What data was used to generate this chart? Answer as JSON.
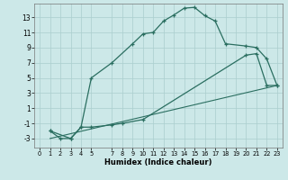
{
  "xlabel": "Humidex (Indice chaleur)",
  "bg_color": "#cce8e8",
  "line_color": "#2a6e60",
  "grid_color": "#aacece",
  "xlim": [
    -0.5,
    23.5
  ],
  "ylim": [
    -4.2,
    14.8
  ],
  "xticks": [
    0,
    1,
    2,
    3,
    4,
    5,
    7,
    8,
    9,
    10,
    11,
    12,
    13,
    14,
    15,
    16,
    17,
    18,
    19,
    20,
    21,
    22,
    23
  ],
  "yticks": [
    -3,
    -1,
    1,
    3,
    5,
    7,
    9,
    11,
    13
  ],
  "curve1_x": [
    1,
    2,
    3,
    4,
    5,
    7,
    9,
    10,
    11,
    12,
    13,
    14,
    15,
    16,
    17,
    18,
    20,
    21,
    22,
    23
  ],
  "curve1_y": [
    -2,
    -3,
    -3,
    -1.5,
    5.0,
    7.0,
    9.5,
    10.8,
    11.0,
    12.5,
    13.3,
    14.2,
    14.3,
    13.2,
    12.5,
    9.5,
    9.2,
    9.0,
    7.5,
    4.0
  ],
  "curve2_x": [
    1,
    3,
    4,
    5,
    7,
    8,
    10,
    20,
    21,
    22,
    23
  ],
  "curve2_y": [
    -2,
    -3,
    -1.5,
    -1.5,
    -1.2,
    -1.0,
    -0.5,
    8.0,
    8.2,
    4.0,
    4.0
  ],
  "line3_x": [
    1,
    23
  ],
  "line3_y": [
    -3,
    4.0
  ]
}
